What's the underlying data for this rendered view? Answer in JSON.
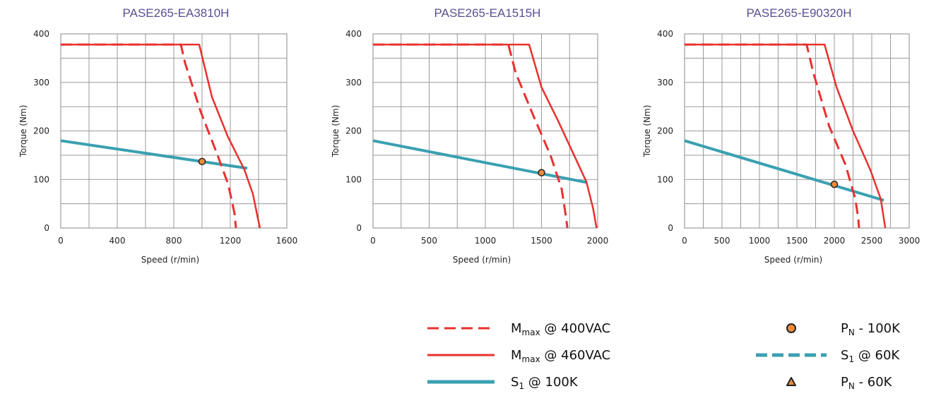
{
  "colors": {
    "red": "#e8312f",
    "teal": "#3aa0b1",
    "point_fill": "#f08a3c",
    "point_stroke": "#222222",
    "title": "#5b4f93",
    "grid": "#9a9a9a"
  },
  "chart_data": [
    {
      "type": "line",
      "title": "PASE265-EA3810H",
      "xlabel": "Speed (r/min)",
      "ylabel": "Torque (Nm)",
      "xlim": [
        0,
        1600
      ],
      "ylim": [
        0,
        400
      ],
      "xticks": [
        0,
        400,
        800,
        1200,
        1600
      ],
      "yticks": [
        0,
        100,
        200,
        300,
        400
      ],
      "grid": true,
      "series": [
        {
          "name": "Mmax @ 400VAC",
          "style": "dashed-red",
          "points": [
            [
              0,
              378
            ],
            [
              850,
              378
            ],
            [
              880,
              340
            ],
            [
              990,
              240
            ],
            [
              1110,
              150
            ],
            [
              1185,
              90
            ],
            [
              1230,
              30
            ],
            [
              1240,
              0
            ]
          ]
        },
        {
          "name": "Mmax @ 460VAC",
          "style": "solid-red",
          "points": [
            [
              0,
              378
            ],
            [
              980,
              378
            ],
            [
              1070,
              270
            ],
            [
              1180,
              190
            ],
            [
              1300,
              120
            ],
            [
              1360,
              70
            ],
            [
              1395,
              20
            ],
            [
              1410,
              0
            ]
          ]
        },
        {
          "name": "S1 @ 100K",
          "style": "solid-teal",
          "points": [
            [
              0,
              180
            ],
            [
              1320,
              123
            ]
          ]
        },
        {
          "name": "PN - 100K",
          "style": "point",
          "points": [
            [
              1000,
              137
            ]
          ]
        }
      ]
    },
    {
      "type": "line",
      "title": "PASE265-EA1515H",
      "xlabel": "Speed (r/min)",
      "ylabel": "Torque (Nm)",
      "xlim": [
        0,
        2000
      ],
      "ylim": [
        0,
        400
      ],
      "xticks": [
        0,
        500,
        1000,
        1500,
        2000
      ],
      "yticks": [
        0,
        100,
        200,
        300,
        400
      ],
      "grid": true,
      "series": [
        {
          "name": "Mmax @ 400VAC",
          "style": "dashed-red",
          "points": [
            [
              0,
              378
            ],
            [
              1205,
              378
            ],
            [
              1270,
              320
            ],
            [
              1430,
              230
            ],
            [
              1580,
              150
            ],
            [
              1680,
              80
            ],
            [
              1720,
              20
            ],
            [
              1730,
              0
            ]
          ]
        },
        {
          "name": "Mmax @ 460VAC",
          "style": "solid-red",
          "points": [
            [
              0,
              378
            ],
            [
              1390,
              378
            ],
            [
              1500,
              290
            ],
            [
              1650,
              220
            ],
            [
              1800,
              145
            ],
            [
              1900,
              95
            ],
            [
              1960,
              40
            ],
            [
              1990,
              0
            ]
          ]
        },
        {
          "name": "S1 @ 100K",
          "style": "solid-teal",
          "points": [
            [
              0,
              180
            ],
            [
              1900,
              94
            ]
          ]
        },
        {
          "name": "PN - 100K",
          "style": "point",
          "points": [
            [
              1500,
              114
            ]
          ]
        }
      ]
    },
    {
      "type": "line",
      "title": "PASE265-E90320H",
      "xlabel": "Speed (r/min)",
      "ylabel": "Torque (Nm)",
      "xlim": [
        0,
        3000
      ],
      "ylim": [
        0,
        400
      ],
      "xticks": [
        0,
        500,
        1000,
        1500,
        2000,
        2500,
        3000
      ],
      "yticks": [
        0,
        100,
        200,
        300,
        400
      ],
      "grid": true,
      "series": [
        {
          "name": "Mmax @ 400VAC",
          "style": "dashed-red",
          "points": [
            [
              0,
              378
            ],
            [
              1630,
              378
            ],
            [
              1720,
              320
            ],
            [
              1930,
              210
            ],
            [
              2150,
              130
            ],
            [
              2280,
              60
            ],
            [
              2320,
              20
            ],
            [
              2330,
              0
            ]
          ]
        },
        {
          "name": "Mmax @ 460VAC",
          "style": "solid-red",
          "points": [
            [
              0,
              378
            ],
            [
              1870,
              378
            ],
            [
              2030,
              290
            ],
            [
              2250,
              200
            ],
            [
              2480,
              120
            ],
            [
              2620,
              60
            ],
            [
              2660,
              20
            ],
            [
              2680,
              0
            ]
          ]
        },
        {
          "name": "S1 @ 100K",
          "style": "solid-teal",
          "points": [
            [
              0,
              180
            ],
            [
              2660,
              57
            ]
          ]
        },
        {
          "name": "PN - 100K",
          "style": "point",
          "points": [
            [
              2000,
              90
            ]
          ]
        }
      ]
    }
  ],
  "legend": [
    {
      "key": "mmax400",
      "label_main": "M",
      "label_sub": "max",
      "label_rest": " @ 400VAC",
      "marker": "dashed-red"
    },
    {
      "key": "mmax460",
      "label_main": "M",
      "label_sub": "max",
      "label_rest": " @ 460VAC",
      "marker": "solid-red"
    },
    {
      "key": "s1_100k",
      "label_main": "S",
      "label_sub": "1",
      "label_rest": " @ 100K",
      "marker": "solid-teal"
    },
    {
      "key": "pn100k",
      "label_main": "P",
      "label_sub": "N",
      "label_rest": " - 100K",
      "marker": "circle"
    },
    {
      "key": "s1_60k",
      "label_main": "S",
      "label_sub": "1",
      "label_rest": " @ 60K",
      "marker": "dashed-teal"
    },
    {
      "key": "pn60k",
      "label_main": "P",
      "label_sub": "N",
      "label_rest": " - 60K",
      "marker": "triangle"
    }
  ]
}
